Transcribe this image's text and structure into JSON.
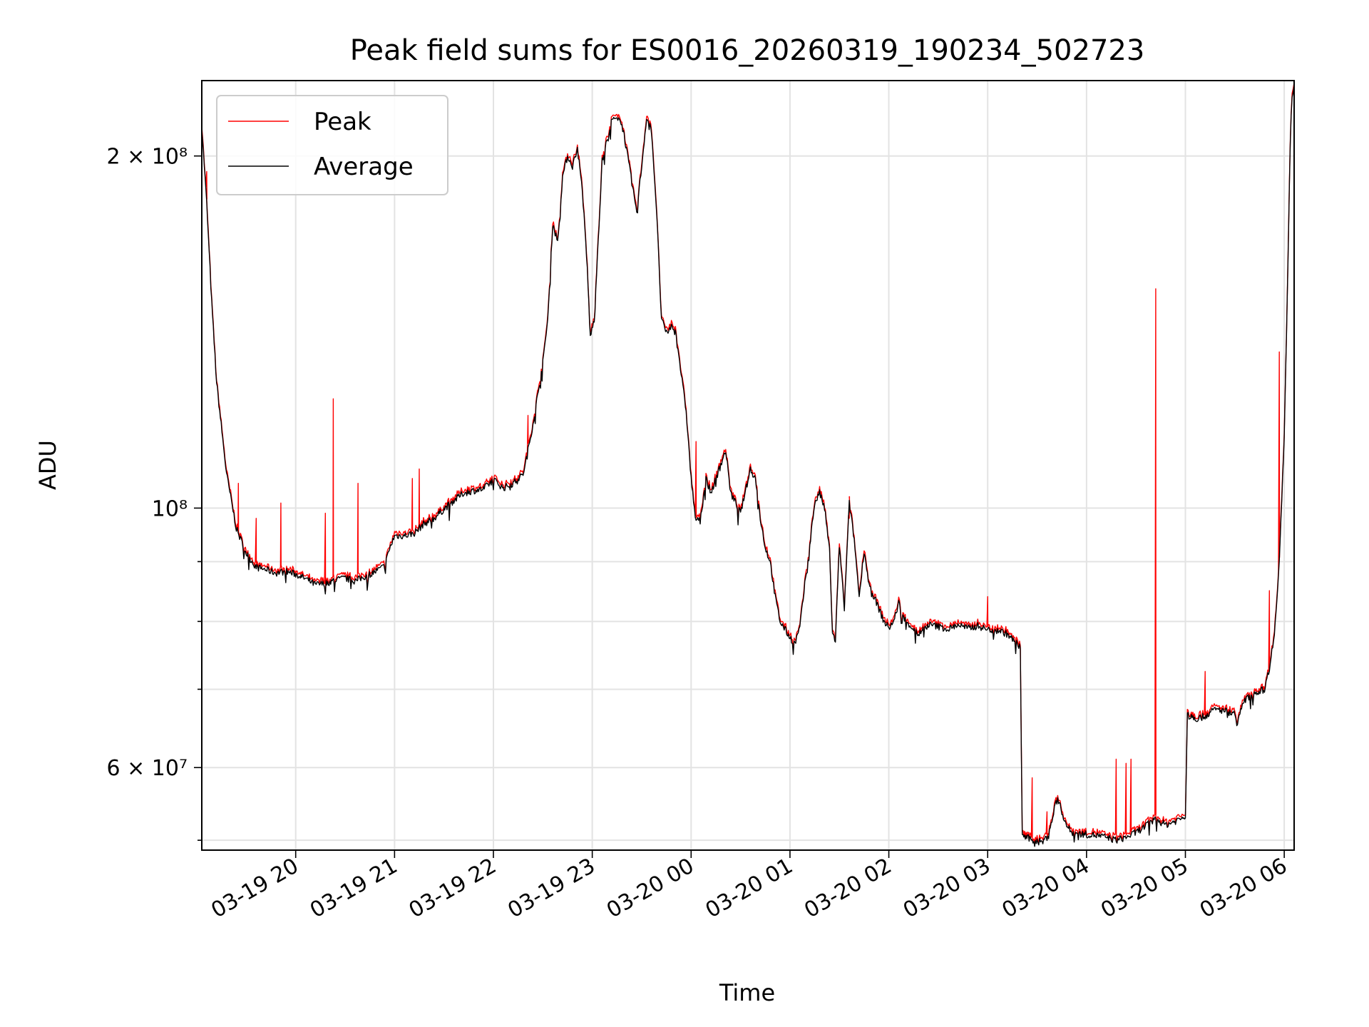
{
  "chart_data": {
    "type": "line",
    "title": "Peak field sums for ES0016_20260319_190234_502723",
    "xlabel": "Time",
    "ylabel": "ADU",
    "yscale": "log",
    "xlim": [
      -0.95,
      10.1
    ],
    "ylim": [
      51000000,
      232000000
    ],
    "grid": true,
    "legend": {
      "position": "top-left",
      "entries": [
        "Peak",
        "Average"
      ]
    },
    "x_unit": "hours after 03-19 20:00",
    "x_ticks": [
      {
        "label": "03-19 20",
        "value": 0
      },
      {
        "label": "03-19 21",
        "value": 1
      },
      {
        "label": "03-19 22",
        "value": 2
      },
      {
        "label": "03-19 23",
        "value": 3
      },
      {
        "label": "03-20 00",
        "value": 4
      },
      {
        "label": "03-20 01",
        "value": 5
      },
      {
        "label": "03-20 02",
        "value": 6
      },
      {
        "label": "03-20 03",
        "value": 7
      },
      {
        "label": "03-20 04",
        "value": 8
      },
      {
        "label": "03-20 05",
        "value": 9
      },
      {
        "label": "03-20 06",
        "value": 10
      }
    ],
    "y_major_ticks": [
      {
        "label": "6 × 10⁷",
        "value": 60000000
      },
      {
        "label": "10⁸",
        "value": 100000000
      },
      {
        "label": "2 × 10⁸",
        "value": 200000000
      }
    ],
    "y_minor_ticks": [
      52000000,
      70000000,
      80000000,
      90000000
    ],
    "series": [
      {
        "name": "Average",
        "color": "#000000",
        "points": [
          [
            -0.95,
            212000000
          ],
          [
            -0.9,
            182000000
          ],
          [
            -0.85,
            150000000
          ],
          [
            -0.8,
            128000000
          ],
          [
            -0.7,
            107000000
          ],
          [
            -0.6,
            96000000
          ],
          [
            -0.5,
            91500000
          ],
          [
            -0.4,
            89000000
          ],
          [
            -0.3,
            88600000
          ],
          [
            -0.2,
            88000000
          ],
          [
            -0.1,
            88300000
          ],
          [
            0.0,
            87800000
          ],
          [
            0.1,
            87000000
          ],
          [
            0.2,
            86000000
          ],
          [
            0.3,
            86200000
          ],
          [
            0.4,
            86800000
          ],
          [
            0.5,
            87100000
          ],
          [
            0.6,
            86600000
          ],
          [
            0.7,
            87400000
          ],
          [
            0.8,
            88200000
          ],
          [
            0.9,
            89200000
          ],
          [
            0.95,
            92300000
          ],
          [
            1.0,
            94700000
          ],
          [
            1.1,
            94700000
          ],
          [
            1.2,
            95200000
          ],
          [
            1.3,
            97000000
          ],
          [
            1.4,
            98000000
          ],
          [
            1.5,
            99800000
          ],
          [
            1.6,
            101500000
          ],
          [
            1.7,
            103000000
          ],
          [
            1.8,
            103500000
          ],
          [
            1.9,
            103800000
          ],
          [
            2.0,
            105800000
          ],
          [
            2.1,
            104000000
          ],
          [
            2.2,
            105000000
          ],
          [
            2.3,
            106800000
          ],
          [
            2.35,
            112000000
          ],
          [
            2.4,
            118000000
          ],
          [
            2.5,
            133000000
          ],
          [
            2.55,
            145000000
          ],
          [
            2.6,
            175000000
          ],
          [
            2.65,
            169000000
          ],
          [
            2.7,
            192000000
          ],
          [
            2.75,
            200000000
          ],
          [
            2.8,
            196000000
          ],
          [
            2.85,
            203000000
          ],
          [
            2.9,
            187000000
          ],
          [
            2.95,
            160000000
          ],
          [
            2.98,
            140000000
          ],
          [
            3.02,
            145000000
          ],
          [
            3.1,
            198000000
          ],
          [
            3.2,
            215000000
          ],
          [
            3.3,
            214000000
          ],
          [
            3.4,
            190000000
          ],
          [
            3.45,
            179000000
          ],
          [
            3.5,
            196000000
          ],
          [
            3.55,
            216000000
          ],
          [
            3.6,
            210000000
          ],
          [
            3.65,
            180000000
          ],
          [
            3.7,
            145000000
          ],
          [
            3.75,
            141000000
          ],
          [
            3.8,
            143000000
          ],
          [
            3.85,
            141000000
          ],
          [
            3.9,
            130000000
          ],
          [
            3.95,
            121000000
          ],
          [
            4.0,
            106000000
          ],
          [
            4.05,
            97000000
          ],
          [
            4.1,
            99000000
          ],
          [
            4.15,
            106000000
          ],
          [
            4.2,
            103000000
          ],
          [
            4.3,
            109000000
          ],
          [
            4.35,
            112000000
          ],
          [
            4.4,
            103000000
          ],
          [
            4.5,
            99000000
          ],
          [
            4.6,
            108000000
          ],
          [
            4.65,
            106000000
          ],
          [
            4.7,
            98000000
          ],
          [
            4.75,
            92500000
          ],
          [
            4.8,
            90000000
          ],
          [
            4.85,
            84000000
          ],
          [
            4.9,
            80000000
          ],
          [
            5.0,
            77500000
          ],
          [
            5.05,
            76600000
          ],
          [
            5.1,
            79000000
          ],
          [
            5.15,
            86000000
          ],
          [
            5.2,
            93000000
          ],
          [
            5.25,
            101000000
          ],
          [
            5.3,
            103000000
          ],
          [
            5.35,
            100000000
          ],
          [
            5.4,
            92000000
          ],
          [
            5.43,
            78000000
          ],
          [
            5.46,
            77000000
          ],
          [
            5.5,
            93000000
          ],
          [
            5.55,
            82000000
          ],
          [
            5.6,
            101000000
          ],
          [
            5.65,
            94000000
          ],
          [
            5.7,
            84000000
          ],
          [
            5.75,
            92000000
          ],
          [
            5.8,
            86000000
          ],
          [
            5.85,
            84000000
          ],
          [
            5.9,
            82000000
          ],
          [
            5.95,
            80000000
          ],
          [
            6.0,
            79000000
          ],
          [
            6.05,
            80000000
          ],
          [
            6.1,
            83000000
          ],
          [
            6.15,
            80500000
          ],
          [
            6.3,
            78000000
          ],
          [
            6.4,
            79500000
          ],
          [
            6.5,
            79200000
          ],
          [
            6.6,
            78800000
          ],
          [
            6.7,
            79500000
          ],
          [
            6.8,
            78900000
          ],
          [
            6.9,
            79300000
          ],
          [
            7.0,
            78700000
          ],
          [
            7.1,
            78700000
          ],
          [
            7.2,
            78000000
          ],
          [
            7.3,
            76500000
          ],
          [
            7.33,
            76000000
          ],
          [
            7.35,
            52500000
          ],
          [
            7.45,
            52000000
          ],
          [
            7.55,
            51800000
          ],
          [
            7.6,
            52300000
          ],
          [
            7.65,
            54000000
          ],
          [
            7.7,
            56700000
          ],
          [
            7.75,
            55000000
          ],
          [
            7.8,
            53500000
          ],
          [
            7.85,
            52800000
          ],
          [
            7.9,
            52700000
          ],
          [
            8.0,
            52600000
          ],
          [
            8.1,
            52500000
          ],
          [
            8.2,
            52300000
          ],
          [
            8.3,
            52000000
          ],
          [
            8.4,
            52300000
          ],
          [
            8.5,
            52800000
          ],
          [
            8.6,
            53500000
          ],
          [
            8.7,
            54200000
          ],
          [
            8.8,
            53600000
          ],
          [
            8.9,
            54000000
          ],
          [
            9.0,
            54500000
          ],
          [
            9.02,
            66500000
          ],
          [
            9.1,
            66000000
          ],
          [
            9.2,
            66400000
          ],
          [
            9.3,
            67300000
          ],
          [
            9.4,
            67100000
          ],
          [
            9.5,
            66700000
          ],
          [
            9.52,
            65500000
          ],
          [
            9.6,
            68500000
          ],
          [
            9.7,
            69500000
          ],
          [
            9.8,
            70000000
          ],
          [
            9.85,
            73000000
          ],
          [
            9.9,
            78000000
          ],
          [
            9.95,
            90000000
          ],
          [
            10.0,
            115000000
          ],
          [
            10.03,
            150000000
          ],
          [
            10.06,
            205000000
          ],
          [
            10.08,
            226000000
          ],
          [
            10.1,
            230000000
          ]
        ]
      },
      {
        "name": "Peak",
        "color": "#ff0000",
        "baseline": "Average",
        "spikes": [
          [
            -0.9,
            194000000
          ],
          [
            -0.58,
            105000000
          ],
          [
            -0.4,
            98000000
          ],
          [
            -0.15,
            101000000
          ],
          [
            0.3,
            99000000
          ],
          [
            0.38,
            124000000
          ],
          [
            0.63,
            105000000
          ],
          [
            1.18,
            106000000
          ],
          [
            1.25,
            108000000
          ],
          [
            2.35,
            120000000
          ],
          [
            4.05,
            114000000
          ],
          [
            5.6,
            98000000
          ],
          [
            7.0,
            84000000
          ],
          [
            7.45,
            58800000
          ],
          [
            7.6,
            55000000
          ],
          [
            8.3,
            61000000
          ],
          [
            8.4,
            60500000
          ],
          [
            8.45,
            61000000
          ],
          [
            8.7,
            154000000
          ],
          [
            9.2,
            72500000
          ],
          [
            9.85,
            85000000
          ],
          [
            9.95,
            136000000
          ]
        ]
      }
    ]
  }
}
